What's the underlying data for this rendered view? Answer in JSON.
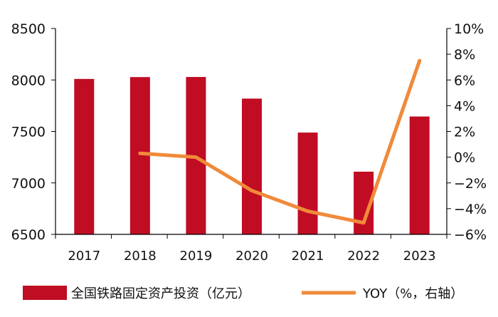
{
  "chart_data": {
    "type": "bar+line",
    "categories": [
      "2017",
      "2018",
      "2019",
      "2020",
      "2021",
      "2022",
      "2023"
    ],
    "series": [
      {
        "name": "全国铁路固定资产投资（亿元）",
        "type": "bar",
        "axis": "left",
        "values": [
          8010,
          8028,
          8029,
          7819,
          7489,
          7109,
          7645
        ],
        "color": "#c00d23"
      },
      {
        "name": "YOY（%，右轴）",
        "type": "line",
        "axis": "right",
        "values": [
          null,
          0.3,
          0.0,
          -2.6,
          -4.2,
          -5.1,
          7.5
        ],
        "color": "#f08a3a"
      }
    ],
    "left_axis": {
      "range": [
        6500,
        8500
      ],
      "ticks": [
        "6500",
        "7000",
        "7500",
        "8000",
        "8500"
      ],
      "tick_values": [
        6500,
        7000,
        7500,
        8000,
        8500
      ]
    },
    "right_axis": {
      "range": [
        -6,
        10
      ],
      "ticks": [
        "−6%",
        "−4%",
        "−2%",
        "0%",
        "2%",
        "4%",
        "6%",
        "8%",
        "10%"
      ],
      "tick_values": [
        -6,
        -4,
        -2,
        0,
        2,
        4,
        6,
        8,
        10
      ]
    },
    "grid": false,
    "legend": "bottom"
  }
}
